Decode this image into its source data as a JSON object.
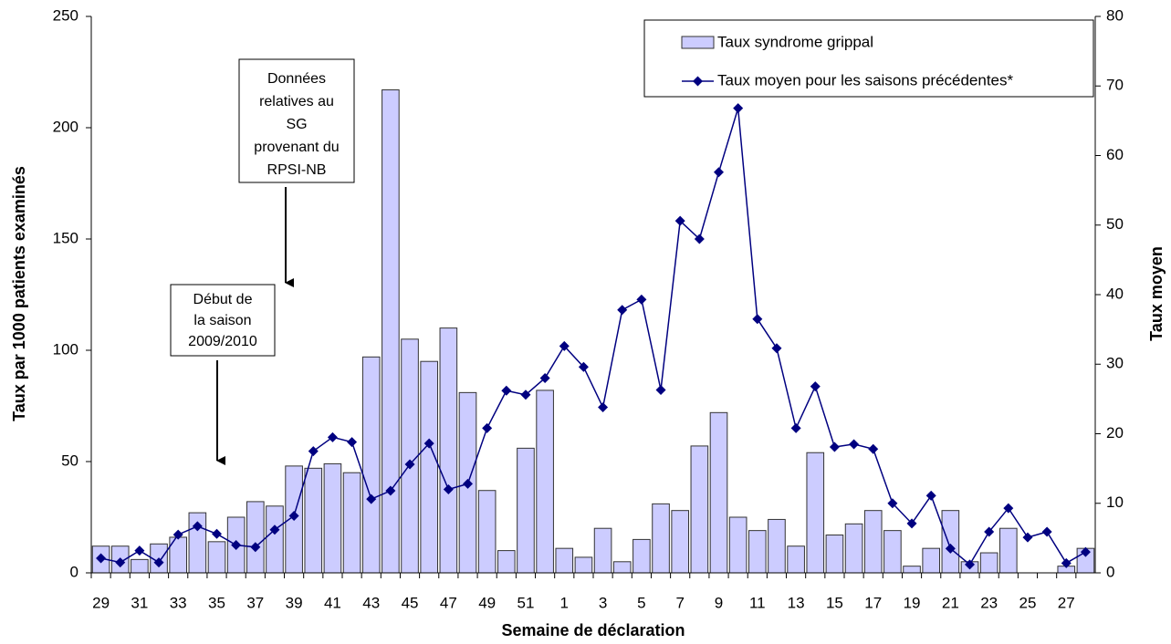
{
  "chart_data": {
    "type": "bar",
    "x_label": "Semaine de déclaration",
    "y_label": "Taux par 1000 patients examinés",
    "y2_label": "Taux moyen",
    "categories": [
      "29",
      null,
      "31",
      null,
      "33",
      null,
      "35",
      null,
      "37",
      null,
      "39",
      null,
      "41",
      null,
      "43",
      null,
      "45",
      null,
      "47",
      null,
      "49",
      null,
      "51",
      null,
      "1",
      null,
      "3",
      null,
      "5",
      null,
      "7",
      null,
      "9",
      null,
      "11",
      null,
      "13",
      null,
      "15",
      null,
      "17",
      null,
      "19",
      null,
      "21",
      null,
      "23",
      null,
      "25",
      null,
      "27",
      null
    ],
    "series": [
      {
        "name": "Taux syndrome grippal",
        "type": "bar",
        "color": "#ccccff",
        "values": [
          12,
          12,
          6,
          13,
          16,
          27,
          14,
          25,
          32,
          30,
          48,
          47,
          49,
          45,
          97,
          217,
          105,
          95,
          110,
          81,
          37,
          10,
          56,
          82,
          11,
          7,
          20,
          5,
          15,
          31,
          28,
          57,
          72,
          25,
          19,
          24,
          12,
          54,
          17,
          22,
          28,
          19,
          3,
          11,
          28,
          5,
          9,
          20,
          0,
          0,
          3,
          11
        ]
      },
      {
        "name": "Taux moyen pour les saisons précédentes*",
        "type": "line",
        "axis": "y2",
        "color": "#000080",
        "values": [
          2.1,
          1.5,
          3.2,
          1.5,
          5.5,
          6.7,
          5.6,
          4,
          3.7,
          6.2,
          8.2,
          17.5,
          19.5,
          18.8,
          10.6,
          11.8,
          15.6,
          18.6,
          12,
          12.8,
          20.8,
          26.2,
          25.6,
          28,
          32.6,
          29.6,
          23.8,
          37.8,
          39.3,
          26.3,
          50.6,
          48,
          57.6,
          66.8,
          36.5,
          32.3,
          20.8,
          26.8,
          18.1,
          18.5,
          17.8,
          10,
          7.1,
          11.1,
          3.5,
          1.2,
          5.9,
          9.3,
          5.1,
          5.9,
          1.4,
          3
        ]
      }
    ],
    "ylim": [
      0,
      250
    ],
    "yticks": [
      0,
      50,
      100,
      150,
      200,
      250
    ],
    "y2lim": [
      0,
      80
    ],
    "y2ticks": [
      0,
      10,
      20,
      30,
      40,
      50,
      60,
      70,
      80
    ],
    "legend": "upper right",
    "annotations": [
      {
        "lines": [
          "Données",
          "relatives au",
          "SG",
          "provenant du",
          "RPSI-NB"
        ]
      },
      {
        "lines": [
          "Début de",
          "la saison",
          "2009/2010"
        ]
      }
    ]
  }
}
